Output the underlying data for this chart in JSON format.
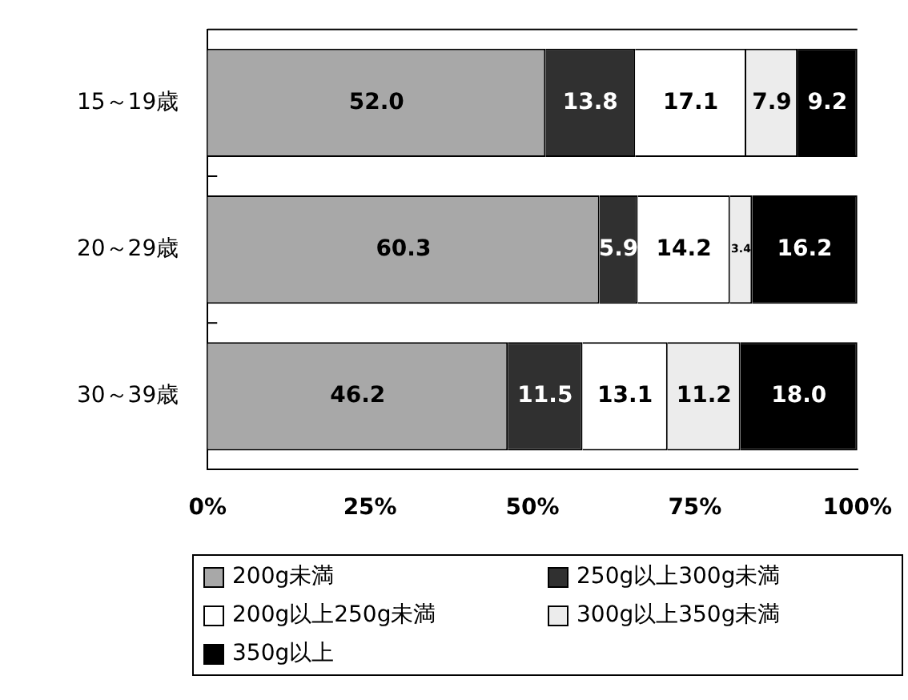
{
  "chart_data": {
    "type": "bar",
    "orientation": "horizontal",
    "stacked": true,
    "categories": [
      "15～19歳",
      "20～29歳",
      "30～39歳"
    ],
    "series": [
      {
        "name": "200g未満",
        "color": "#a8a8a8",
        "values": [
          52.0,
          60.3,
          46.2
        ],
        "value_labels": [
          "52.0",
          "60.3",
          "46.2"
        ]
      },
      {
        "name": "250g以上300g未満",
        "color": "#303030",
        "values": [
          13.8,
          5.9,
          11.5
        ],
        "value_labels": [
          "13.8",
          "5.9",
          "11.5"
        ]
      },
      {
        "name": "200g以上250g未満",
        "color": "#ffffff",
        "values": [
          17.1,
          14.2,
          13.1
        ],
        "value_labels": [
          "17.1",
          "14.2",
          "13.1"
        ]
      },
      {
        "name": "300g以上350g未満",
        "color": "#ececec",
        "values": [
          7.9,
          3.4,
          11.2
        ],
        "value_labels": [
          "7.9",
          "3.4",
          "11.2"
        ]
      },
      {
        "name": "350g以上",
        "color": "#000000",
        "values": [
          9.2,
          16.2,
          18.0
        ],
        "value_labels": [
          "9.2",
          "16.2",
          "18.0"
        ]
      }
    ],
    "xlim": [
      0,
      100
    ],
    "xticks": [
      {
        "value": 0,
        "label": "0%"
      },
      {
        "value": 25,
        "label": "25%"
      },
      {
        "value": 50,
        "label": "50%"
      },
      {
        "value": 75,
        "label": "75%"
      },
      {
        "value": 100,
        "label": "100%"
      }
    ],
    "grid": false,
    "legend": "bottom"
  }
}
